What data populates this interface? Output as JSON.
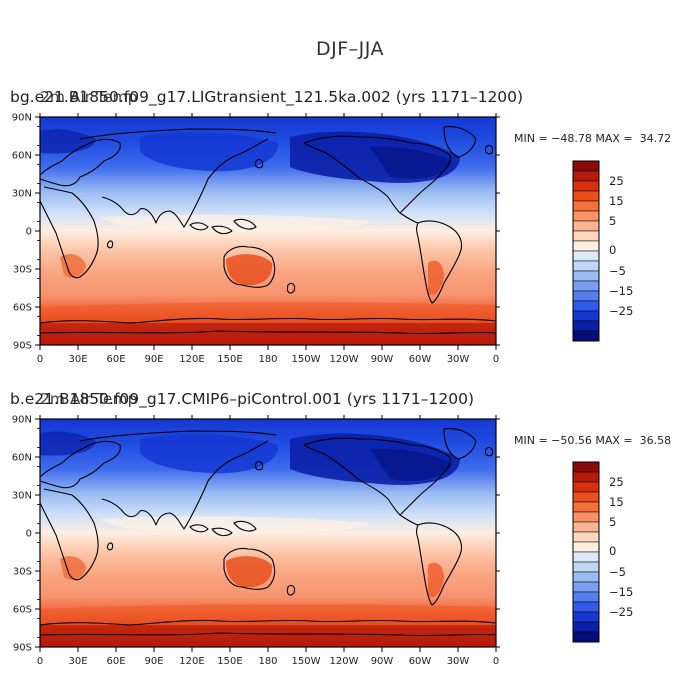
{
  "figure_title": "DJF–JJA",
  "panels": [
    {
      "title": "bg.e21.B1850.f09_g17.LIGtransient_121.5ka.002 (yrs 1171–1200)",
      "title_overlay": "2m Air Temp",
      "min_max": "MIN = −48.78 MAX =  34.72"
    },
    {
      "title": "b.e21.B1850.f09_g17.CMIP6–piControl.001 (yrs 1171–1200)",
      "title_overlay": "2m Air Temp",
      "min_max": "MIN = −50.56 MAX =  36.58"
    }
  ],
  "lat_labels": [
    "90N",
    "60N",
    "30N",
    "0",
    "30S",
    "60S",
    "90S"
  ],
  "lon_labels": [
    "0",
    "30E",
    "60E",
    "90E",
    "120E",
    "150E",
    "180",
    "150W",
    "120W",
    "90W",
    "60W",
    "30W",
    "0"
  ],
  "colorbar_labels": [
    "25",
    "15",
    "5",
    "0",
    "−5",
    "−15",
    "−25"
  ],
  "colorbar_colors": [
    "#8b0a0a",
    "#b51a0c",
    "#d7300f",
    "#ef4d1c",
    "#f6703a",
    "#f99164",
    "#fbb493",
    "#fdd6bd",
    "#fcefe2",
    "#dde9f8",
    "#bfd6f6",
    "#9bbcf2",
    "#779ef0",
    "#547df0",
    "#3159ea",
    "#1538d2",
    "#0a20a8",
    "#040d78"
  ]
}
